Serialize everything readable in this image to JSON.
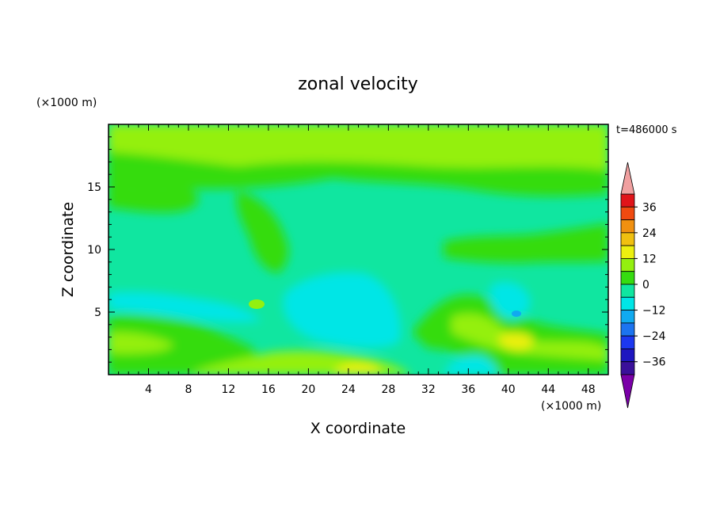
{
  "chart_data": {
    "type": "heatmap",
    "title": "zonal velocity",
    "xlabel": "X coordinate",
    "ylabel": "Z coordinate",
    "x_unit": "(×1000 m)",
    "y_unit": "(×1000 m)",
    "time_label": "t=486000 s",
    "xlim": [
      0,
      50
    ],
    "ylim": [
      0,
      20
    ],
    "x_ticks": [
      4,
      8,
      12,
      16,
      20,
      24,
      28,
      32,
      36,
      40,
      44,
      48
    ],
    "y_ticks": [
      5,
      10,
      15
    ],
    "colorbar": {
      "levels": [
        -42,
        -36,
        -30,
        -24,
        -18,
        -12,
        -6,
        0,
        6,
        12,
        18,
        24,
        30,
        36,
        42
      ],
      "labeled_ticks": [
        36,
        24,
        12,
        0,
        -12,
        -24,
        -36
      ],
      "colors": [
        "#7a00a8",
        "#3a109a",
        "#1e16c0",
        "#1c38f0",
        "#1c74f0",
        "#10aaf0",
        "#00e6e6",
        "#10e6a0",
        "#36dc10",
        "#94f010",
        "#ecf010",
        "#f0c010",
        "#f09010",
        "#f04a10",
        "#e0141a",
        "#f0a0a0"
      ]
    },
    "field_summary": [
      {
        "z": 18.5,
        "x": [
          0,
          50
        ],
        "value": 3
      },
      {
        "z": 17.0,
        "x": [
          0,
          50
        ],
        "value": 1
      },
      {
        "z": 16.0,
        "x": [
          0,
          30
        ],
        "value": 3
      },
      {
        "z": 12.0,
        "x": [
          0,
          50
        ],
        "value": -3
      },
      {
        "z": 10.0,
        "x": [
          14,
          20
        ],
        "value": 1
      },
      {
        "z": 6.0,
        "x": [
          18,
          28
        ],
        "value": -7
      },
      {
        "z": 4.8,
        "x": [
          40,
          41
        ],
        "value": -14
      },
      {
        "z": 3.0,
        "x": [
          40,
          41
        ],
        "value": 10
      },
      {
        "z": 1.2,
        "x": [
          23,
          26
        ],
        "value": 11
      },
      {
        "z": 0.5,
        "x": [
          35,
          37
        ],
        "value": -9
      }
    ]
  }
}
